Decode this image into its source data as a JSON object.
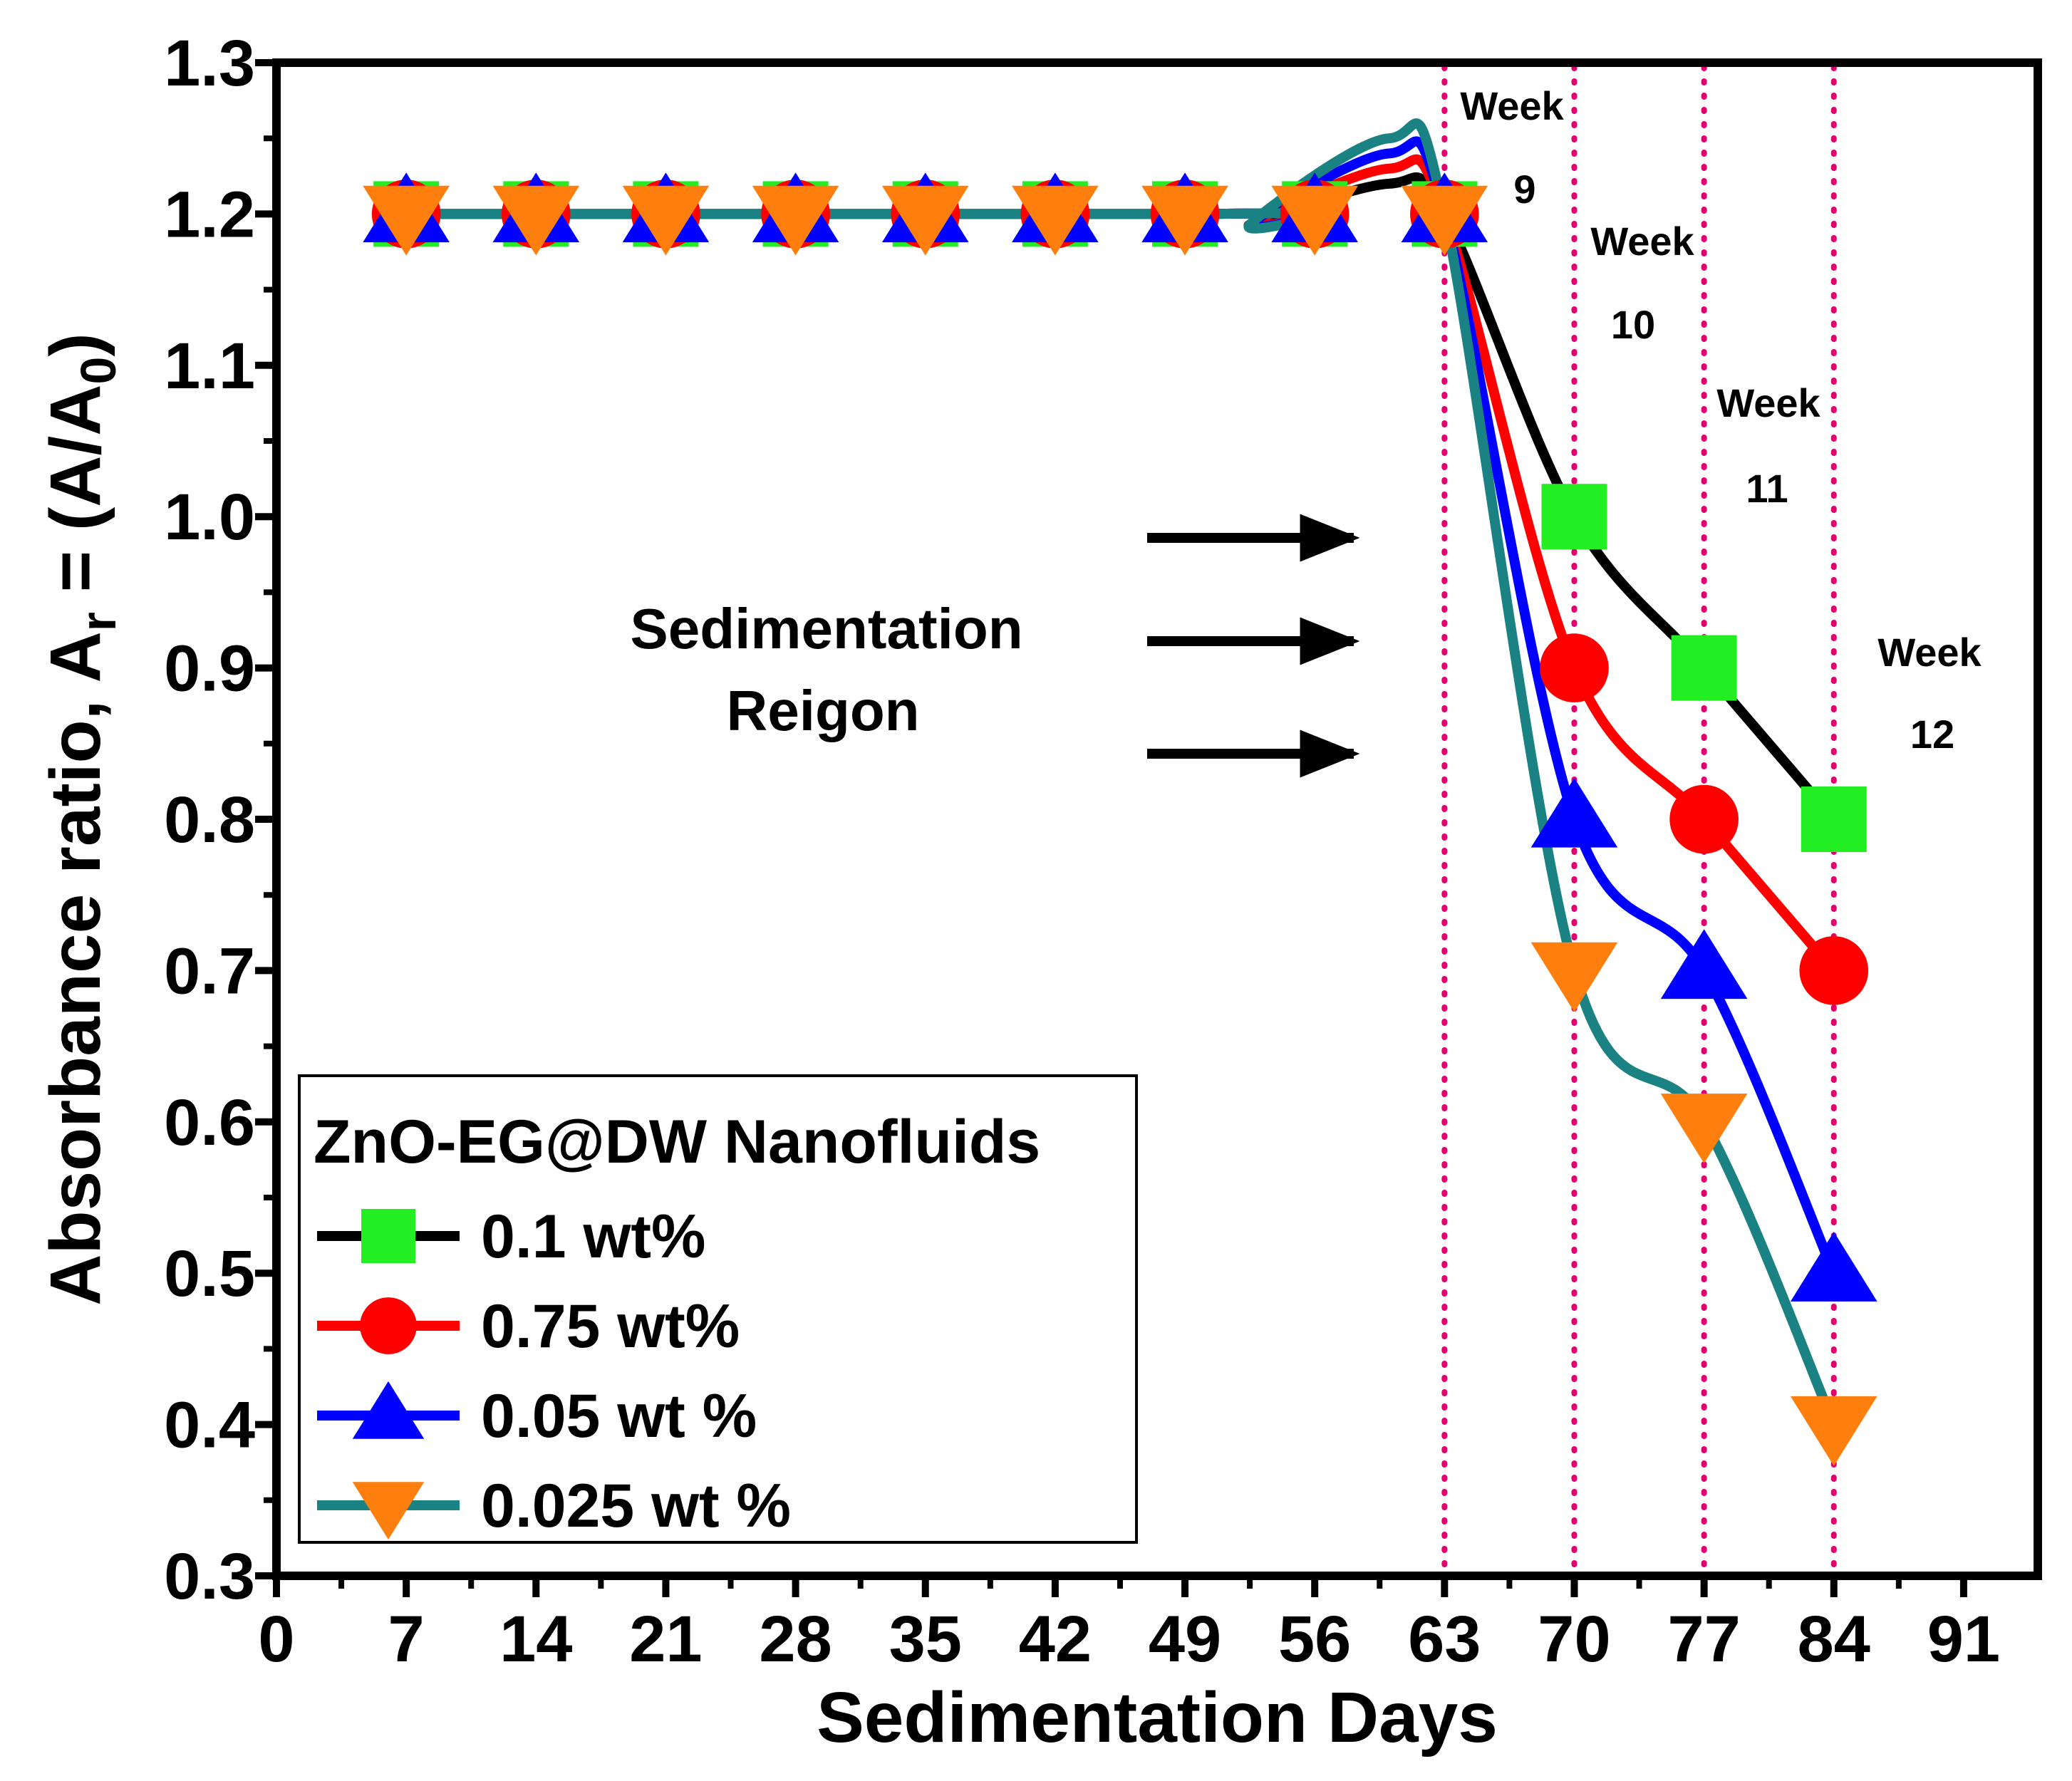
{
  "chart_data": {
    "type": "line",
    "xlabel": "Sedimentation Days",
    "ylabel_main": "Absorbance ratio, A",
    "ylabel_sub_r": "r",
    "ylabel_eq": " = (A/A",
    "ylabel_sub_0": "0",
    "ylabel_close": ")",
    "xlim": [
      0,
      95
    ],
    "ylim": [
      0.3,
      1.3
    ],
    "xticks": [
      0,
      7,
      14,
      21,
      28,
      35,
      42,
      49,
      56,
      63,
      70,
      77,
      84,
      91
    ],
    "yticks": [
      0.3,
      0.4,
      0.5,
      0.6,
      0.7,
      0.8,
      0.9,
      1.0,
      1.1,
      1.2,
      1.3
    ],
    "x": [
      7,
      14,
      21,
      28,
      35,
      42,
      49,
      56,
      63,
      70,
      77,
      84
    ],
    "series": [
      {
        "name": "0.1 wt%",
        "marker": "square",
        "line_color": "#000000",
        "marker_color": "#22ee22",
        "curve_peak": 1.22,
        "values": [
          1.2,
          1.2,
          1.2,
          1.2,
          1.2,
          1.2,
          1.2,
          1.2,
          1.2,
          1.0,
          0.9,
          0.8
        ]
      },
      {
        "name": "0.75 wt%",
        "marker": "circle",
        "line_color": "#ff0000",
        "marker_color": "#ff0000",
        "curve_peak": 1.23,
        "values": [
          1.2,
          1.2,
          1.2,
          1.2,
          1.2,
          1.2,
          1.2,
          1.2,
          1.2,
          0.9,
          0.8,
          0.7
        ]
      },
      {
        "name": "0.05 wt %",
        "marker": "triangle-up",
        "line_color": "#0000ff",
        "marker_color": "#0000ff",
        "curve_peak": 1.24,
        "values": [
          1.2,
          1.2,
          1.2,
          1.2,
          1.2,
          1.2,
          1.2,
          1.2,
          1.2,
          0.8,
          0.7,
          0.5
        ]
      },
      {
        "name": "0.025 wt %",
        "marker": "triangle-down",
        "line_color": "#1a8282",
        "marker_color": "#ff7f0e",
        "curve_peak": 1.25,
        "values": [
          1.2,
          1.2,
          1.2,
          1.2,
          1.2,
          1.2,
          1.2,
          1.2,
          1.2,
          0.7,
          0.6,
          0.4
        ]
      }
    ],
    "vlines": [
      63,
      70,
      77,
      84
    ],
    "vline_color": "#e0006e",
    "week_annotations": [
      {
        "week": "Week",
        "num": "9",
        "at_day": 63
      },
      {
        "week": "Week",
        "num": "10",
        "at_day": 70
      },
      {
        "week": "Week",
        "num": "11",
        "at_day": 77
      },
      {
        "week": "Week",
        "num": "12",
        "at_day": 84
      }
    ],
    "region_label_line1": "Sedimentation",
    "region_label_line2": "Reigon",
    "legend_title": "ZnO-EG@DW Nanofluids",
    "legend_position": "bottom-left"
  }
}
